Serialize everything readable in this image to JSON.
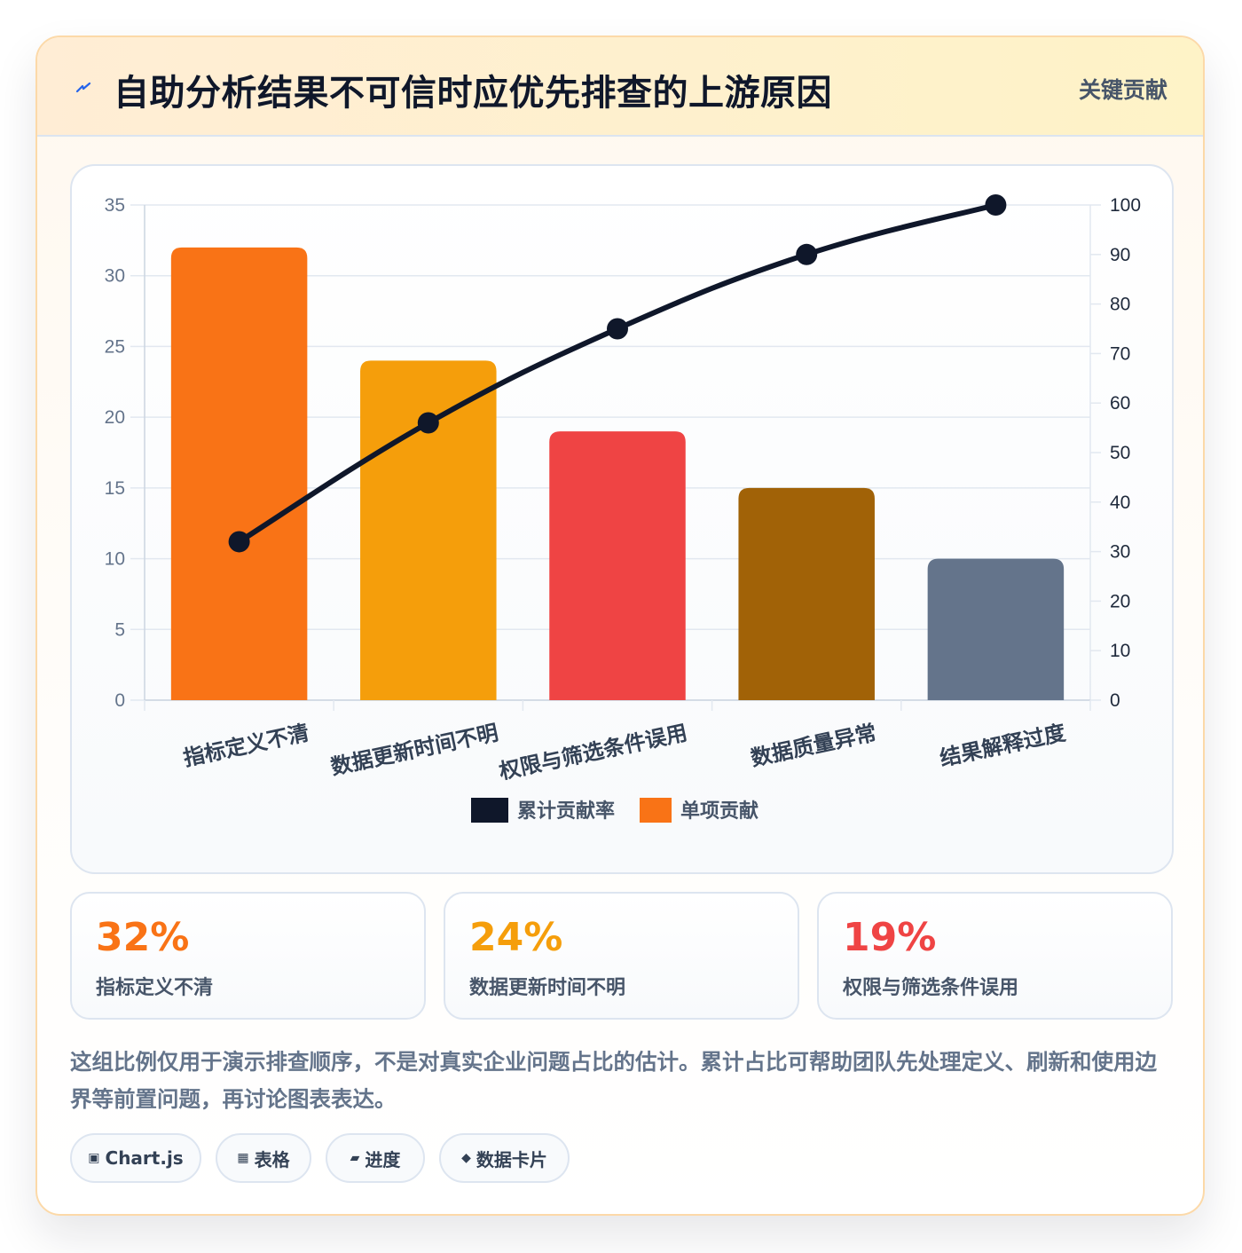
{
  "header": {
    "title": "自助分析结果不可信时应优先排查的上游原因",
    "tag": "关键贡献",
    "icon": "lightning-icon"
  },
  "chart_data": {
    "type": "bar",
    "categories": [
      "指标定义不清",
      "数据更新时间不明",
      "权限与筛选条件误用",
      "数据质量异常",
      "结果解释过度"
    ],
    "series": [
      {
        "name": "单项贡献",
        "type": "bar",
        "axis": "left",
        "values": [
          32,
          24,
          19,
          15,
          10
        ],
        "colors": [
          "#f97316",
          "#f59e0b",
          "#ef4444",
          "#a16207",
          "#64748b"
        ]
      },
      {
        "name": "累计贡献率",
        "type": "line",
        "axis": "right",
        "values": [
          32,
          56,
          75,
          90,
          100
        ],
        "color": "#0f172a"
      }
    ],
    "ylim": [
      0,
      35
    ],
    "yticks": [
      0,
      5,
      10,
      15,
      20,
      25,
      30,
      35
    ],
    "y2lim": [
      0,
      100
    ],
    "y2ticks": [
      0,
      10,
      20,
      30,
      40,
      50,
      60,
      70,
      80,
      90,
      100
    ],
    "grid": true,
    "legend": {
      "placement": "bottom",
      "items": [
        {
          "name": "累计贡献率",
          "color": "#0f172a"
        },
        {
          "name": "单项贡献",
          "color": "#f97316"
        }
      ]
    }
  },
  "stats": [
    {
      "value": "32%",
      "label": "指标定义不清",
      "color": "#f97316"
    },
    {
      "value": "24%",
      "label": "数据更新时间不明",
      "color": "#f59e0b"
    },
    {
      "value": "19%",
      "label": "权限与筛选条件误用",
      "color": "#ef4444"
    }
  ],
  "note": "这组比例仅用于演示排查顺序，不是对真实企业问题占比的估计。累计占比可帮助团队先处理定义、刷新和使用边界等前置问题，再讨论图表表达。",
  "chips": [
    {
      "icon": "▣",
      "label": "Chart.js"
    },
    {
      "icon": "▦",
      "label": "表格"
    },
    {
      "icon": "▰",
      "label": "进度"
    },
    {
      "icon": "◆",
      "label": "数据卡片"
    }
  ]
}
